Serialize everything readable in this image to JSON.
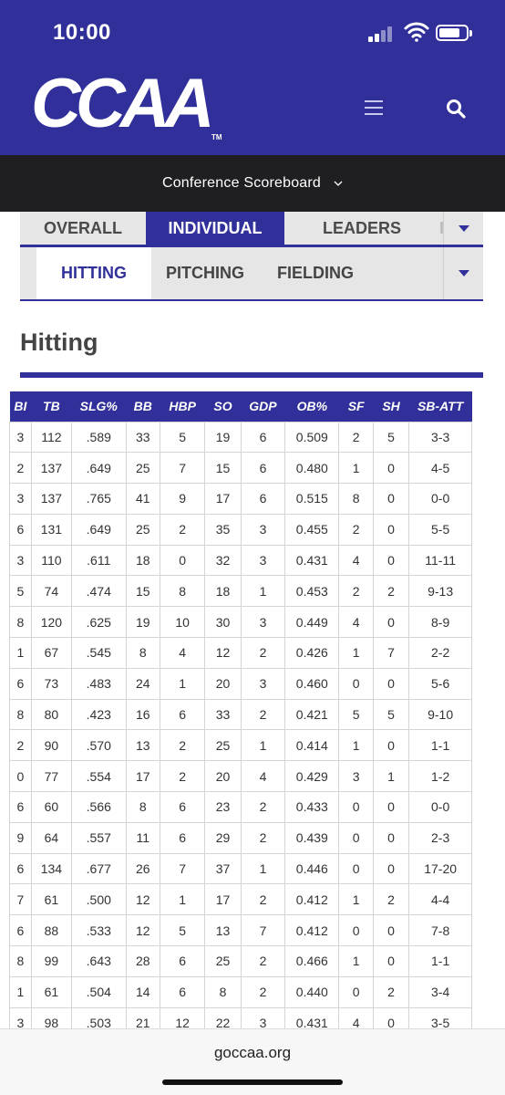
{
  "status_bar": {
    "time": "10:00"
  },
  "header": {
    "logo": "CCAA",
    "trademark": "TM"
  },
  "scoreboard": {
    "label": "Conference Scoreboard"
  },
  "tabs_primary": [
    "OVERALL",
    "INDIVIDUAL",
    "LEADERS",
    "P"
  ],
  "tabs_secondary": [
    "HITTING",
    "PITCHING",
    "FIELDING"
  ],
  "section_title": "Hitting",
  "table": {
    "columns": [
      "BI",
      "TB",
      "SLG%",
      "BB",
      "HBP",
      "SO",
      "GDP",
      "OB%",
      "SF",
      "SH",
      "SB-ATT"
    ],
    "rows": [
      [
        "3",
        "112",
        ".589",
        "33",
        "5",
        "19",
        "6",
        "0.509",
        "2",
        "5",
        "3-3"
      ],
      [
        "2",
        "137",
        ".649",
        "25",
        "7",
        "15",
        "6",
        "0.480",
        "1",
        "0",
        "4-5"
      ],
      [
        "3",
        "137",
        ".765",
        "41",
        "9",
        "17",
        "6",
        "0.515",
        "8",
        "0",
        "0-0"
      ],
      [
        "6",
        "131",
        ".649",
        "25",
        "2",
        "35",
        "3",
        "0.455",
        "2",
        "0",
        "5-5"
      ],
      [
        "3",
        "110",
        ".611",
        "18",
        "0",
        "32",
        "3",
        "0.431",
        "4",
        "0",
        "11-11"
      ],
      [
        "5",
        "74",
        ".474",
        "15",
        "8",
        "18",
        "1",
        "0.453",
        "2",
        "2",
        "9-13"
      ],
      [
        "8",
        "120",
        ".625",
        "19",
        "10",
        "30",
        "3",
        "0.449",
        "4",
        "0",
        "8-9"
      ],
      [
        "1",
        "67",
        ".545",
        "8",
        "4",
        "12",
        "2",
        "0.426",
        "1",
        "7",
        "2-2"
      ],
      [
        "6",
        "73",
        ".483",
        "24",
        "1",
        "20",
        "3",
        "0.460",
        "0",
        "0",
        "5-6"
      ],
      [
        "8",
        "80",
        ".423",
        "16",
        "6",
        "33",
        "2",
        "0.421",
        "5",
        "5",
        "9-10"
      ],
      [
        "2",
        "90",
        ".570",
        "13",
        "2",
        "25",
        "1",
        "0.414",
        "1",
        "0",
        "1-1"
      ],
      [
        "0",
        "77",
        ".554",
        "17",
        "2",
        "20",
        "4",
        "0.429",
        "3",
        "1",
        "1-2"
      ],
      [
        "6",
        "60",
        ".566",
        "8",
        "6",
        "23",
        "2",
        "0.433",
        "0",
        "0",
        "0-0"
      ],
      [
        "9",
        "64",
        ".557",
        "11",
        "6",
        "29",
        "2",
        "0.439",
        "0",
        "0",
        "2-3"
      ],
      [
        "6",
        "134",
        ".677",
        "26",
        "7",
        "37",
        "1",
        "0.446",
        "0",
        "0",
        "17-20"
      ],
      [
        "7",
        "61",
        ".500",
        "12",
        "1",
        "17",
        "2",
        "0.412",
        "1",
        "2",
        "4-4"
      ],
      [
        "6",
        "88",
        ".533",
        "12",
        "5",
        "13",
        "7",
        "0.412",
        "0",
        "0",
        "7-8"
      ],
      [
        "8",
        "99",
        ".643",
        "28",
        "6",
        "25",
        "2",
        "0.466",
        "1",
        "0",
        "1-1"
      ],
      [
        "1",
        "61",
        ".504",
        "14",
        "6",
        "8",
        "2",
        "0.440",
        "0",
        "2",
        "3-4"
      ],
      [
        "3",
        "98",
        ".503",
        "21",
        "12",
        "22",
        "3",
        "0.431",
        "4",
        "0",
        "3-5"
      ]
    ]
  },
  "url_bar": {
    "url": "goccaa.org"
  },
  "colors": {
    "brand": "#31309a",
    "scorebar": "#1f1f21"
  }
}
